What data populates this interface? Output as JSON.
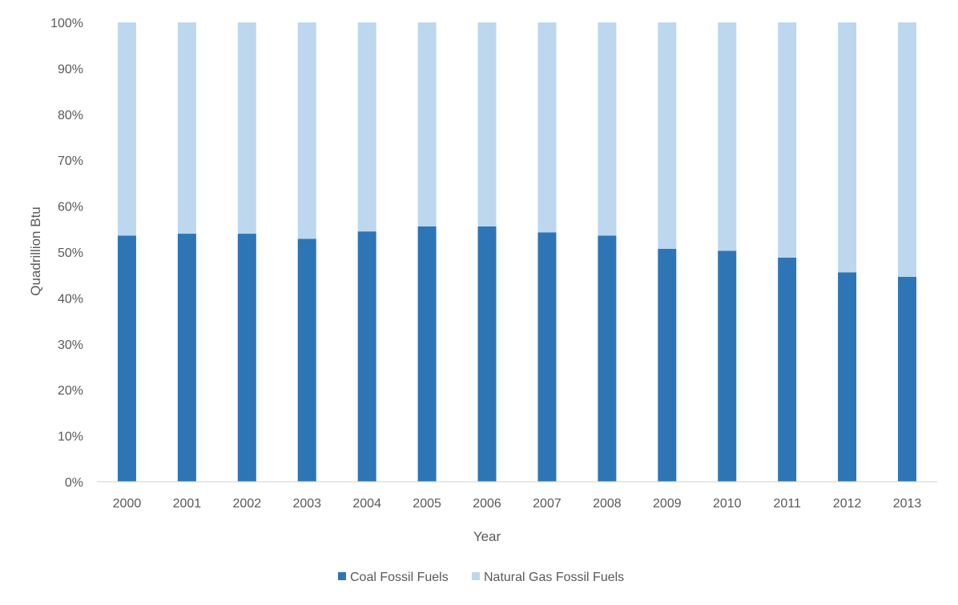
{
  "chart_data": {
    "type": "bar",
    "stacked": "percent",
    "categories": [
      "2000",
      "2001",
      "2002",
      "2003",
      "2004",
      "2005",
      "2006",
      "2007",
      "2008",
      "2009",
      "2010",
      "2011",
      "2012",
      "2013"
    ],
    "series": [
      {
        "name": "Coal Fossil Fuels",
        "color": "#2E75B6",
        "values": [
          53.6,
          54.0,
          54.0,
          52.9,
          54.5,
          55.6,
          55.6,
          54.3,
          53.6,
          50.7,
          50.3,
          48.8,
          45.6,
          44.6
        ]
      },
      {
        "name": "Natural Gas Fossil Fuels",
        "color": "#BDD7EE",
        "values": [
          46.4,
          46.0,
          46.0,
          47.1,
          45.5,
          44.4,
          44.4,
          45.7,
          46.4,
          49.3,
          49.7,
          51.2,
          54.4,
          55.4
        ]
      }
    ],
    "xlabel": "Year",
    "ylabel": "Quadrillion Btu",
    "ylim": [
      0,
      100
    ],
    "yticks": [
      "0%",
      "10%",
      "20%",
      "30%",
      "40%",
      "50%",
      "60%",
      "70%",
      "80%",
      "90%",
      "100%"
    ],
    "grid": false,
    "legend_position": "bottom"
  }
}
